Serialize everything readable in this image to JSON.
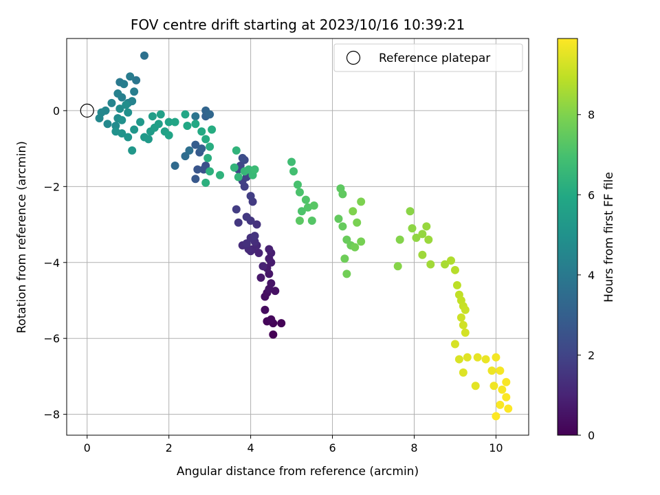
{
  "chart_data": {
    "type": "scatter",
    "title": "FOV centre drift starting at 2023/10/16 10:39:21",
    "xlabel": "Angular distance from reference (arcmin)",
    "ylabel": "Rotation from reference (arcmin)",
    "xlim": [
      -0.5,
      10.8
    ],
    "ylim": [
      -8.55,
      1.9
    ],
    "xticks": [
      0,
      2,
      4,
      6,
      8,
      10
    ],
    "yticks": [
      0,
      -2,
      -4,
      -6,
      -8
    ],
    "grid": true,
    "legend": {
      "placement": "top-right",
      "entries": [
        "Reference platepar"
      ]
    },
    "reference_point": {
      "x": 0,
      "y": 0,
      "label": "Reference platepar"
    },
    "colorbar": {
      "label": "Hours from first FF file",
      "range": [
        0,
        9.9
      ],
      "ticks": [
        0,
        2,
        4,
        6,
        8
      ],
      "colormap": "viridis"
    },
    "points": [
      [
        4.55,
        -5.9,
        0.0
      ],
      [
        4.75,
        -5.6,
        0.05
      ],
      [
        4.55,
        -5.6,
        0.1
      ],
      [
        4.4,
        -5.55,
        0.15
      ],
      [
        4.5,
        -5.5,
        0.2
      ],
      [
        4.35,
        -5.25,
        0.3
      ],
      [
        4.35,
        -4.9,
        0.35
      ],
      [
        4.4,
        -4.8,
        0.4
      ],
      [
        4.6,
        -4.75,
        0.45
      ],
      [
        4.45,
        -4.7,
        0.5
      ],
      [
        4.5,
        -4.55,
        0.55
      ],
      [
        4.45,
        -4.3,
        0.6
      ],
      [
        4.25,
        -4.4,
        0.65
      ],
      [
        4.4,
        -4.15,
        0.7
      ],
      [
        4.5,
        -4.0,
        0.75
      ],
      [
        4.45,
        -3.9,
        0.8
      ],
      [
        4.5,
        -3.75,
        0.85
      ],
      [
        4.45,
        -3.65,
        0.9
      ],
      [
        4.3,
        -4.1,
        0.95
      ],
      [
        4.2,
        -3.75,
        1.0
      ],
      [
        4.05,
        -3.65,
        1.05
      ],
      [
        4.15,
        -3.55,
        1.1
      ],
      [
        4.0,
        -3.7,
        1.15
      ],
      [
        3.95,
        -3.65,
        1.2
      ],
      [
        3.8,
        -3.55,
        1.25
      ],
      [
        4.1,
        -3.45,
        1.3
      ],
      [
        3.9,
        -3.5,
        1.35
      ],
      [
        4.0,
        -3.35,
        1.4
      ],
      [
        4.15,
        -3.0,
        1.45
      ],
      [
        4.1,
        -3.3,
        1.5
      ],
      [
        4.0,
        -2.9,
        1.55
      ],
      [
        3.7,
        -2.95,
        1.6
      ],
      [
        3.9,
        -2.8,
        1.65
      ],
      [
        4.05,
        -2.4,
        1.7
      ],
      [
        3.65,
        -2.6,
        1.75
      ],
      [
        4.0,
        -2.25,
        1.8
      ],
      [
        3.85,
        -2.0,
        1.85
      ],
      [
        3.8,
        -1.85,
        1.9
      ],
      [
        3.9,
        -1.75,
        1.95
      ],
      [
        3.7,
        -1.55,
        2.0
      ],
      [
        3.75,
        -1.45,
        2.1
      ],
      [
        3.85,
        -1.3,
        2.2
      ],
      [
        3.8,
        -1.25,
        2.3
      ],
      [
        2.9,
        -1.45,
        2.4
      ],
      [
        2.85,
        -1.55,
        2.5
      ],
      [
        2.7,
        -1.55,
        2.6
      ],
      [
        2.65,
        -1.8,
        2.7
      ],
      [
        2.75,
        -1.1,
        2.8
      ],
      [
        2.65,
        -0.9,
        2.9
      ],
      [
        2.8,
        -1.0,
        3.0
      ],
      [
        2.9,
        -0.15,
        3.1
      ],
      [
        2.9,
        0.0,
        3.2
      ],
      [
        3.0,
        -0.1,
        3.3
      ],
      [
        2.15,
        -1.45,
        3.4
      ],
      [
        2.4,
        -1.2,
        3.5
      ],
      [
        2.5,
        -1.05,
        3.6
      ],
      [
        1.4,
        1.45,
        3.7
      ],
      [
        2.65,
        -0.15,
        3.8
      ],
      [
        1.2,
        0.8,
        3.9
      ],
      [
        0.8,
        0.75,
        4.0
      ],
      [
        1.05,
        0.9,
        4.1
      ],
      [
        0.9,
        0.7,
        4.15
      ],
      [
        1.15,
        0.5,
        4.2
      ],
      [
        0.85,
        0.35,
        4.25
      ],
      [
        0.75,
        0.45,
        4.3
      ],
      [
        1.0,
        0.2,
        4.35
      ],
      [
        1.1,
        0.25,
        4.4
      ],
      [
        0.6,
        0.2,
        4.45
      ],
      [
        0.45,
        0.0,
        4.5
      ],
      [
        0.35,
        -0.05,
        4.55
      ],
      [
        0.3,
        -0.2,
        4.6
      ],
      [
        0.5,
        -0.35,
        4.65
      ],
      [
        0.7,
        -0.4,
        4.7
      ],
      [
        0.75,
        -0.2,
        4.75
      ],
      [
        0.8,
        0.05,
        4.8
      ],
      [
        0.95,
        0.15,
        4.85
      ],
      [
        1.0,
        -0.05,
        4.9
      ],
      [
        0.85,
        -0.25,
        4.95
      ],
      [
        0.7,
        -0.55,
        5.0
      ],
      [
        0.85,
        -0.6,
        5.05
      ],
      [
        1.0,
        -0.7,
        5.1
      ],
      [
        1.15,
        -0.5,
        5.15
      ],
      [
        1.1,
        -1.05,
        5.2
      ],
      [
        1.3,
        -0.3,
        5.25
      ],
      [
        1.4,
        -0.7,
        5.3
      ],
      [
        1.5,
        -0.75,
        5.35
      ],
      [
        1.55,
        -0.55,
        5.4
      ],
      [
        1.6,
        -0.15,
        5.45
      ],
      [
        1.65,
        -0.45,
        5.5
      ],
      [
        1.75,
        -0.35,
        5.55
      ],
      [
        1.8,
        -0.1,
        5.6
      ],
      [
        1.9,
        -0.55,
        5.65
      ],
      [
        2.0,
        -0.3,
        5.7
      ],
      [
        2.0,
        -0.65,
        5.75
      ],
      [
        2.15,
        -0.3,
        5.8
      ],
      [
        2.4,
        -0.1,
        5.85
      ],
      [
        2.45,
        -0.4,
        5.9
      ],
      [
        2.65,
        -0.35,
        5.95
      ],
      [
        2.8,
        -0.55,
        6.0
      ],
      [
        2.9,
        -0.75,
        6.05
      ],
      [
        3.05,
        -0.5,
        6.1
      ],
      [
        3.0,
        -0.95,
        6.15
      ],
      [
        2.95,
        -1.25,
        6.2
      ],
      [
        2.9,
        -1.9,
        6.25
      ],
      [
        3.0,
        -1.6,
        6.3
      ],
      [
        3.25,
        -1.7,
        6.35
      ],
      [
        3.65,
        -1.05,
        6.4
      ],
      [
        3.6,
        -1.5,
        6.45
      ],
      [
        3.7,
        -1.75,
        6.5
      ],
      [
        3.85,
        -1.6,
        6.55
      ],
      [
        3.95,
        -1.55,
        6.6
      ],
      [
        4.05,
        -1.7,
        6.65
      ],
      [
        4.1,
        -1.55,
        6.7
      ],
      [
        5.0,
        -1.35,
        6.8
      ],
      [
        5.05,
        -1.6,
        6.9
      ],
      [
        5.15,
        -1.95,
        7.0
      ],
      [
        5.2,
        -2.15,
        7.05
      ],
      [
        5.25,
        -2.65,
        7.1
      ],
      [
        5.35,
        -2.35,
        7.15
      ],
      [
        5.4,
        -2.55,
        7.2
      ],
      [
        5.5,
        -2.9,
        7.25
      ],
      [
        5.55,
        -2.5,
        7.3
      ],
      [
        5.2,
        -2.9,
        7.35
      ],
      [
        6.2,
        -2.05,
        7.4
      ],
      [
        6.25,
        -2.2,
        7.45
      ],
      [
        6.15,
        -2.85,
        7.5
      ],
      [
        6.25,
        -3.05,
        7.55
      ],
      [
        6.35,
        -3.4,
        7.6
      ],
      [
        6.45,
        -3.55,
        7.65
      ],
      [
        6.3,
        -3.9,
        7.7
      ],
      [
        6.35,
        -4.3,
        7.75
      ],
      [
        6.55,
        -3.6,
        7.8
      ],
      [
        6.7,
        -3.45,
        7.85
      ],
      [
        6.6,
        -2.95,
        7.9
      ],
      [
        6.7,
        -2.4,
        7.95
      ],
      [
        6.5,
        -2.65,
        8.0
      ],
      [
        7.65,
        -3.4,
        8.05
      ],
      [
        7.6,
        -4.1,
        8.1
      ],
      [
        7.9,
        -2.65,
        8.15
      ],
      [
        7.95,
        -3.1,
        8.2
      ],
      [
        8.05,
        -3.35,
        8.25
      ],
      [
        8.2,
        -3.25,
        8.3
      ],
      [
        8.3,
        -3.05,
        8.35
      ],
      [
        8.35,
        -3.4,
        8.4
      ],
      [
        8.2,
        -3.8,
        8.45
      ],
      [
        8.4,
        -4.05,
        8.5
      ],
      [
        8.75,
        -4.05,
        8.6
      ],
      [
        8.9,
        -3.95,
        8.7
      ],
      [
        9.0,
        -4.2,
        8.8
      ],
      [
        9.05,
        -4.6,
        8.9
      ],
      [
        9.1,
        -4.85,
        8.95
      ],
      [
        9.15,
        -5.0,
        9.0
      ],
      [
        9.2,
        -5.15,
        9.05
      ],
      [
        9.25,
        -5.25,
        9.1
      ],
      [
        9.15,
        -5.45,
        9.15
      ],
      [
        9.2,
        -5.65,
        9.2
      ],
      [
        9.25,
        -5.85,
        9.25
      ],
      [
        9.0,
        -6.15,
        9.3
      ],
      [
        9.1,
        -6.55,
        9.35
      ],
      [
        9.2,
        -6.9,
        9.4
      ],
      [
        9.3,
        -6.5,
        9.45
      ],
      [
        9.5,
        -7.25,
        9.5
      ],
      [
        9.55,
        -6.5,
        9.55
      ],
      [
        9.75,
        -6.55,
        9.6
      ],
      [
        9.9,
        -6.85,
        9.65
      ],
      [
        9.95,
        -7.25,
        9.7
      ],
      [
        10.0,
        -6.5,
        9.75
      ],
      [
        10.1,
        -6.85,
        9.78
      ],
      [
        10.15,
        -7.35,
        9.8
      ],
      [
        10.25,
        -7.15,
        9.82
      ],
      [
        10.1,
        -7.75,
        9.84
      ],
      [
        10.25,
        -7.55,
        9.86
      ],
      [
        10.3,
        -7.85,
        9.88
      ],
      [
        10.0,
        -8.05,
        9.9
      ]
    ]
  }
}
